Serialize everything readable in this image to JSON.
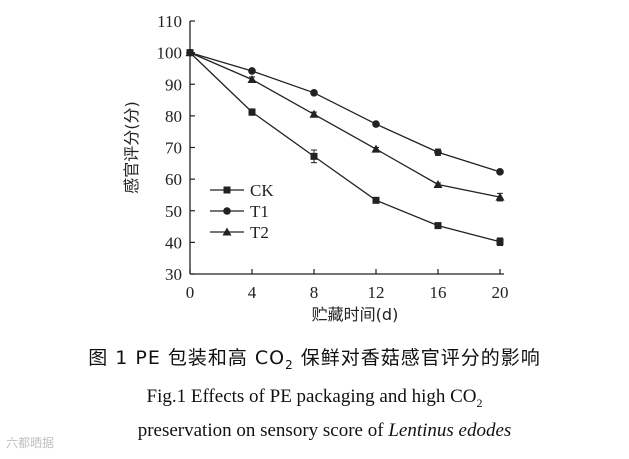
{
  "chart_data": {
    "type": "line",
    "ylabel": "感官评分(分)",
    "xlabel": "贮藏时间(d)",
    "x": [
      0,
      4,
      8,
      12,
      16,
      20
    ],
    "xticks": [
      "0",
      "4",
      "8",
      "12",
      "16",
      "20"
    ],
    "yticks": [
      "30",
      "40",
      "50",
      "60",
      "70",
      "80",
      "90",
      "100",
      "110"
    ],
    "ylim": [
      30,
      110
    ],
    "xlim": [
      0,
      20
    ],
    "grid": false,
    "legend_position": "lower-left",
    "series": [
      {
        "name": "CK",
        "marker": "square",
        "values": [
          100,
          81.2,
          67.2,
          53.3,
          45.3,
          40.2
        ],
        "errors": [
          0,
          1.0,
          2.0,
          0.6,
          0.5,
          1.2
        ]
      },
      {
        "name": "T1",
        "marker": "circle",
        "values": [
          100,
          94.2,
          87.3,
          77.4,
          68.5,
          62.3
        ],
        "errors": [
          0,
          0.5,
          0.5,
          0.5,
          1.0,
          0.6
        ]
      },
      {
        "name": "T2",
        "marker": "triangle",
        "values": [
          100,
          91.5,
          80.5,
          69.5,
          58.3,
          54.3
        ],
        "errors": [
          0,
          0.8,
          0.7,
          0.5,
          0.5,
          1.2
        ]
      }
    ]
  },
  "caption": {
    "cn_prefix": "图 1    PE 包装和高 CO",
    "cn_sub": "2",
    "cn_suffix": " 保鲜对香菇感官评分的影响",
    "en_line1_prefix": "Fig.1    Effects of PE packaging and high CO",
    "en_line1_sub": "2",
    "en_line2_plain": "preservation on sensory score of ",
    "en_line2_italic": "Lentinus edodes"
  },
  "watermark": "六都晒据",
  "colors": {
    "ink": "#222222",
    "background": "#ffffff"
  }
}
